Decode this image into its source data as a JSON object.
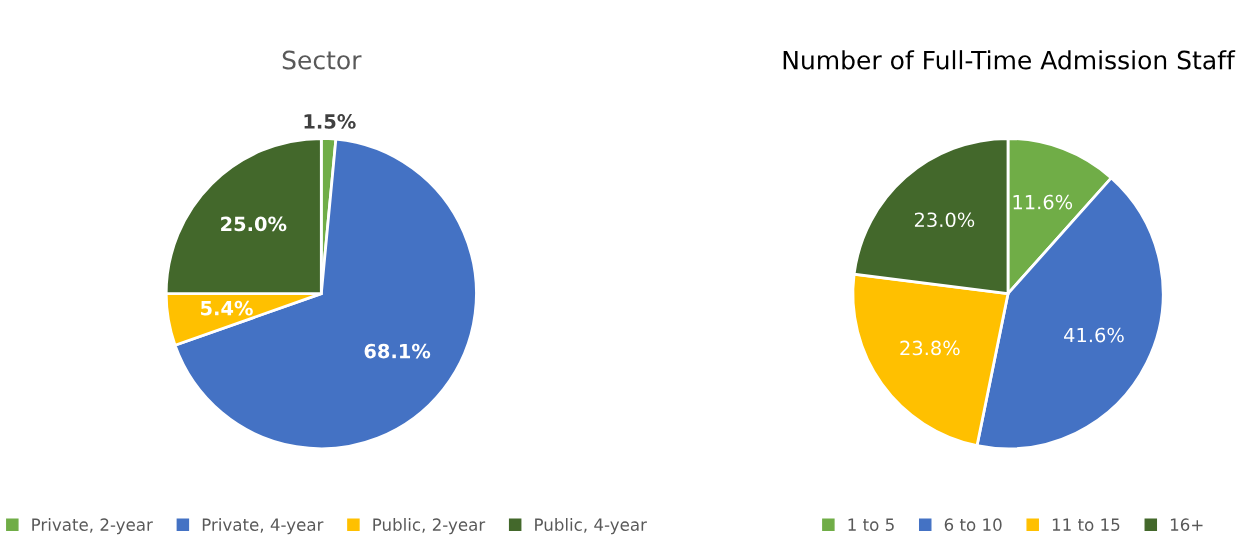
{
  "chart_data": [
    {
      "type": "pie",
      "title": "Sector",
      "categories": [
        "Private, 2-year",
        "Private, 4-year",
        "Public, 2-year",
        "Public, 4-year"
      ],
      "values": [
        1.5,
        68.1,
        5.4,
        25.0
      ],
      "colors": [
        "#70ad47",
        "#4472c4",
        "#ffc000",
        "#43682b"
      ],
      "value_labels": [
        "1.5%",
        "68.1%",
        "5.4%",
        "25.0%"
      ],
      "legend": "bottom"
    },
    {
      "type": "pie",
      "title": "Number of Full-Time Admission Staff",
      "categories": [
        "1 to 5",
        "6 to 10",
        "11 to 15",
        "16+"
      ],
      "values": [
        11.6,
        41.6,
        23.8,
        23.0
      ],
      "colors": [
        "#70ad47",
        "#4472c4",
        "#ffc000",
        "#43682b"
      ],
      "value_labels": [
        "11.6%",
        "41.6%",
        "23.8%",
        "23.0%"
      ],
      "legend": "bottom"
    }
  ]
}
